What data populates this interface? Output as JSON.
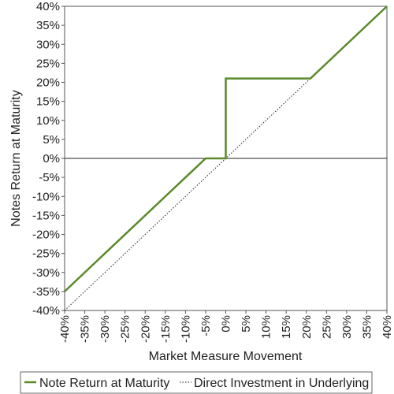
{
  "chart_data": {
    "type": "line",
    "xlabel": "Market Measure Movement",
    "ylabel": "Notes Return at Maturity",
    "xlim": [
      -40,
      40
    ],
    "ylim": [
      -40,
      40
    ],
    "x_ticks": [
      -40,
      -35,
      -30,
      -25,
      -20,
      -15,
      -10,
      -5,
      0,
      5,
      10,
      15,
      20,
      25,
      30,
      35,
      40
    ],
    "y_ticks": [
      40,
      35,
      30,
      25,
      20,
      15,
      10,
      5,
      0,
      -5,
      -10,
      -15,
      -20,
      -25,
      -30,
      -35,
      -40
    ],
    "x_tick_labels": [
      "-40%",
      "-35%",
      "-30%",
      "-25%",
      "-20%",
      "-15%",
      "-10%",
      "-5%",
      "0%",
      "5%",
      "10%",
      "15%",
      "20%",
      "25%",
      "30%",
      "35%",
      "40%"
    ],
    "y_tick_labels": [
      "40%",
      "35%",
      "30%",
      "25%",
      "20%",
      "15%",
      "10%",
      "5%",
      "0%",
      "-5%",
      "-10%",
      "-15%",
      "-20%",
      "-25%",
      "-30%",
      "-35%",
      "-40%"
    ],
    "grid": false,
    "legend": "bottom",
    "series": [
      {
        "name": "Note Return at Maturity",
        "color": "#5a8a2a",
        "style": "solid",
        "x": [
          -40,
          -5,
          0,
          0,
          21,
          40
        ],
        "y": [
          -35,
          0,
          0,
          21,
          21,
          40
        ]
      },
      {
        "name": "Direct Investment in Underlying",
        "color": "#222222",
        "style": "dotted",
        "x": [
          -40,
          40
        ],
        "y": [
          -40,
          40
        ]
      }
    ]
  }
}
